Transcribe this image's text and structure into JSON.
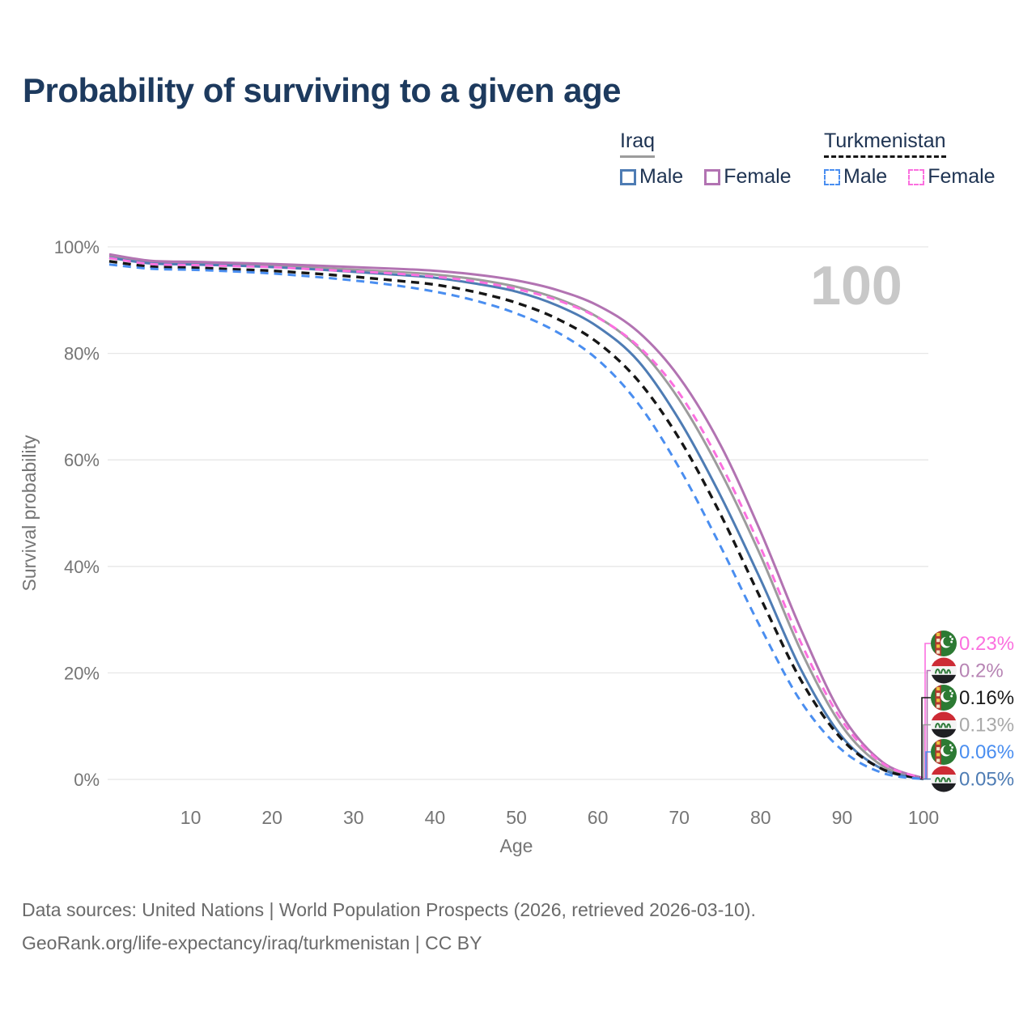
{
  "title": "Probability of surviving to a given age",
  "watermark_age": "100",
  "legend": {
    "groups": [
      {
        "country": "Iraq",
        "underline_style": "solid",
        "underline_color": "#9c9c9c",
        "items": [
          {
            "label": "Male",
            "color": "#4e7cb4",
            "dashed": false
          },
          {
            "label": "Female",
            "color": "#b273b2",
            "dashed": false
          }
        ]
      },
      {
        "country": "Turkmenistan",
        "underline_style": "dashed",
        "underline_color": "#161616",
        "items": [
          {
            "label": "Male",
            "color": "#4a8ef0",
            "dashed": true
          },
          {
            "label": "Female",
            "color": "#fb70df",
            "dashed": true
          }
        ]
      }
    ]
  },
  "chart_data": {
    "type": "line",
    "title": "Probability of surviving to a given age",
    "xlabel": "Age",
    "ylabel": "Survival probability",
    "xlim": [
      0,
      100
    ],
    "ylim": [
      0,
      100
    ],
    "x_ticks": [
      10,
      20,
      30,
      40,
      50,
      60,
      70,
      80,
      90,
      100
    ],
    "y_ticks": [
      {
        "value": 0,
        "label": "0%"
      },
      {
        "value": 20,
        "label": "20%"
      },
      {
        "value": 40,
        "label": "40%"
      },
      {
        "value": 60,
        "label": "60%"
      },
      {
        "value": 80,
        "label": "80%"
      },
      {
        "value": 100,
        "label": "100%"
      }
    ],
    "grid": "horizontal",
    "legend_position": "top-right",
    "ages": [
      0,
      5,
      10,
      15,
      20,
      25,
      30,
      35,
      40,
      45,
      50,
      55,
      60,
      65,
      70,
      75,
      80,
      85,
      90,
      95,
      100
    ],
    "series": [
      {
        "id": "iraq-both",
        "name": "Iraq",
        "country": "Iraq",
        "sex": "Both",
        "color": "#9c9c9c",
        "dashed": false,
        "end_label": "0.13%",
        "values": [
          98.3,
          97.1,
          96.9,
          96.7,
          96.5,
          96.1,
          95.7,
          95.3,
          94.8,
          93.9,
          92.5,
          90.3,
          86.8,
          81.0,
          71.3,
          58.0,
          42.0,
          24.0,
          10.0,
          2.5,
          0.13
        ]
      },
      {
        "id": "iraq-male",
        "name": "Iraq Male",
        "country": "Iraq",
        "sex": "Male",
        "color": "#4e7cb4",
        "dashed": false,
        "end_label": "0.05%",
        "values": [
          98.0,
          96.9,
          96.7,
          96.5,
          96.2,
          95.8,
          95.3,
          94.8,
          94.2,
          93.1,
          91.6,
          89.0,
          85.0,
          78.5,
          67.5,
          53.5,
          37.5,
          20.5,
          8.0,
          1.9,
          0.05
        ]
      },
      {
        "id": "iraq-female",
        "name": "Iraq Female",
        "country": "Iraq",
        "sex": "Female",
        "color": "#b273b2",
        "dashed": false,
        "end_label": "0.2%",
        "values": [
          98.6,
          97.4,
          97.2,
          97.0,
          96.8,
          96.5,
          96.2,
          95.9,
          95.5,
          94.8,
          93.7,
          91.9,
          89.0,
          84.0,
          75.5,
          63.0,
          46.5,
          28.0,
          12.0,
          3.2,
          0.2
        ]
      },
      {
        "id": "tm-both",
        "name": "Turkmenistan",
        "country": "Turkmenistan",
        "sex": "Both",
        "color": "#161616",
        "dashed": true,
        "end_label": "0.16%",
        "values": [
          97.3,
          96.3,
          96.1,
          95.8,
          95.5,
          95.0,
          94.4,
          93.7,
          92.9,
          91.5,
          89.5,
          86.5,
          82.0,
          74.8,
          64.0,
          50.0,
          34.0,
          18.5,
          7.5,
          1.9,
          0.16
        ]
      },
      {
        "id": "tm-male",
        "name": "Turkmenistan Male",
        "country": "Turkmenistan",
        "sex": "Male",
        "color": "#4a8ef0",
        "dashed": true,
        "end_label": "0.06%",
        "values": [
          96.7,
          95.9,
          95.7,
          95.4,
          95.0,
          94.4,
          93.7,
          92.8,
          91.6,
          89.9,
          87.5,
          84.0,
          78.8,
          70.5,
          58.5,
          44.0,
          28.5,
          14.5,
          5.5,
          1.2,
          0.06
        ]
      },
      {
        "id": "tm-female",
        "name": "Turkmenistan Female",
        "country": "Turkmenistan",
        "sex": "Female",
        "color": "#fb70df",
        "dashed": true,
        "end_label": "0.23%",
        "values": [
          97.9,
          96.8,
          96.6,
          96.4,
          96.2,
          95.8,
          95.4,
          95.0,
          94.4,
          93.5,
          92.1,
          90.0,
          86.7,
          81.3,
          72.5,
          59.5,
          43.5,
          25.5,
          11.0,
          3.0,
          0.23
        ]
      }
    ],
    "end_labels": [
      {
        "series": "tm-female",
        "text": "0.23%",
        "color": "#fb70df",
        "flag": "turkmenistan"
      },
      {
        "series": "iraq-female",
        "text": "0.2%",
        "color": "#b784b4",
        "flag": "iraq"
      },
      {
        "series": "tm-both",
        "text": "0.16%",
        "color": "#1a1a1a",
        "flag": "turkmenistan"
      },
      {
        "series": "iraq-both",
        "text": "0.13%",
        "color": "#a9a9a9",
        "flag": "iraq"
      },
      {
        "series": "tm-male",
        "text": "0.06%",
        "color": "#4a8ef0",
        "flag": "turkmenistan"
      },
      {
        "series": "iraq-male",
        "text": "0.05%",
        "color": "#4e7cb4",
        "flag": "iraq"
      }
    ]
  },
  "footer": {
    "line1": "Data sources: United Nations | World Population Prospects (2026, retrieved 2026-03-10).",
    "line2": "GeoRank.org/life-expectancy/iraq/turkmenistan | CC BY"
  }
}
